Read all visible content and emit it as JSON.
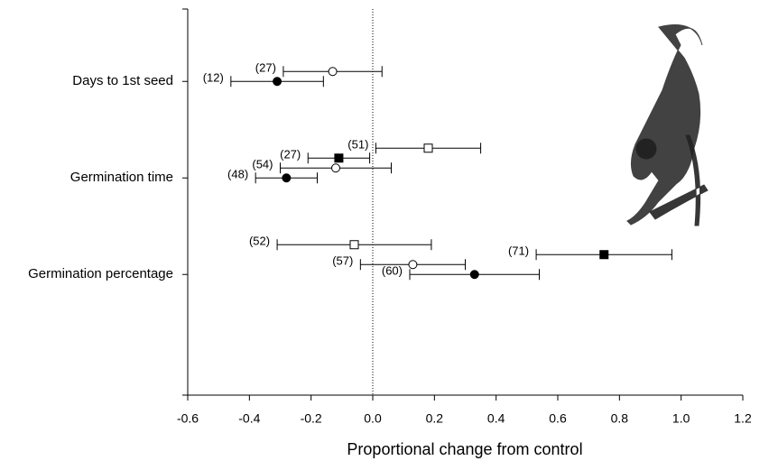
{
  "chart_data": {
    "type": "errorbar-dot",
    "xlabel": "Proportional change from control",
    "xlim": [
      -0.6,
      1.2
    ],
    "xticks": [
      -0.6,
      -0.4,
      -0.2,
      {
        "value": 0,
        "label": "0.0"
      },
      0.2,
      0.4,
      0.6,
      0.8,
      {
        "value": 1,
        "label": "1.0"
      },
      1.2
    ],
    "reference_x": 0,
    "categories": [
      "Days to 1st seed",
      "Germination time",
      "Germination percentage"
    ],
    "points": [
      {
        "category": 0,
        "shape": "circle",
        "filled": false,
        "value": -0.13,
        "lo": -0.29,
        "hi": 0.03,
        "label": "(27)"
      },
      {
        "category": 0,
        "shape": "circle",
        "filled": true,
        "value": -0.31,
        "lo": -0.46,
        "hi": -0.16,
        "label": "(12)"
      },
      {
        "category": 1,
        "shape": "square",
        "filled": false,
        "value": 0.18,
        "lo": 0.01,
        "hi": 0.35,
        "label": "(51)"
      },
      {
        "category": 1,
        "shape": "square",
        "filled": true,
        "value": -0.11,
        "lo": -0.21,
        "hi": -0.01,
        "label": "(27)"
      },
      {
        "category": 1,
        "shape": "circle",
        "filled": false,
        "value": -0.12,
        "lo": -0.3,
        "hi": 0.06,
        "label": "(54)"
      },
      {
        "category": 1,
        "shape": "circle",
        "filled": true,
        "value": -0.28,
        "lo": -0.38,
        "hi": -0.18,
        "label": "(48)"
      },
      {
        "category": 2,
        "shape": "square",
        "filled": false,
        "value": -0.06,
        "lo": -0.31,
        "hi": 0.19,
        "label": "(52)"
      },
      {
        "category": 2,
        "shape": "square",
        "filled": true,
        "value": 0.75,
        "lo": 0.53,
        "hi": 0.97,
        "label": "(71)"
      },
      {
        "category": 2,
        "shape": "circle",
        "filled": false,
        "value": 0.13,
        "lo": -0.04,
        "hi": 0.3,
        "label": "(57)"
      },
      {
        "category": 2,
        "shape": "circle",
        "filled": true,
        "value": 0.33,
        "lo": 0.12,
        "hi": 0.54,
        "label": "(60)"
      }
    ]
  }
}
